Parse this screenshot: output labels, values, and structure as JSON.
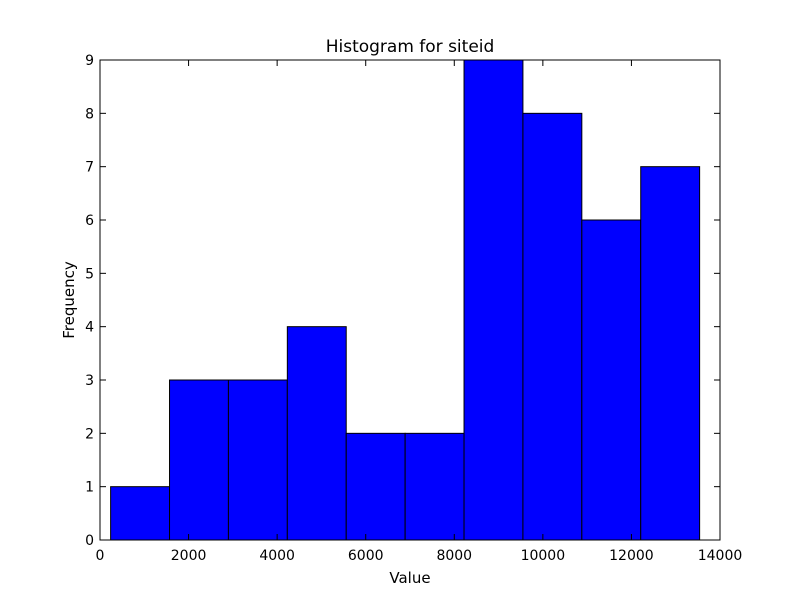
{
  "chart_data": {
    "type": "bar",
    "title": "Histogram for siteid",
    "xlabel": "Value",
    "ylabel": "Frequency",
    "xlim": [
      0,
      14000
    ],
    "ylim": [
      0,
      9
    ],
    "x_ticks": [
      0,
      2000,
      4000,
      6000,
      8000,
      10000,
      12000,
      14000
    ],
    "y_ticks": [
      0,
      1,
      2,
      3,
      4,
      5,
      6,
      7,
      8,
      9
    ],
    "bins": [
      {
        "start": 240,
        "end": 1570,
        "value": 1
      },
      {
        "start": 1570,
        "end": 2900,
        "value": 3
      },
      {
        "start": 2900,
        "end": 4230,
        "value": 3
      },
      {
        "start": 4230,
        "end": 5560,
        "value": 4
      },
      {
        "start": 5560,
        "end": 6890,
        "value": 2
      },
      {
        "start": 6890,
        "end": 8220,
        "value": 2
      },
      {
        "start": 8220,
        "end": 9550,
        "value": 9
      },
      {
        "start": 9550,
        "end": 10880,
        "value": 8
      },
      {
        "start": 10880,
        "end": 12210,
        "value": 6
      },
      {
        "start": 12210,
        "end": 13540,
        "value": 7
      }
    ],
    "bar_color": "#0000ff",
    "edge_color": "#000000",
    "grid": false,
    "legend": "none"
  }
}
